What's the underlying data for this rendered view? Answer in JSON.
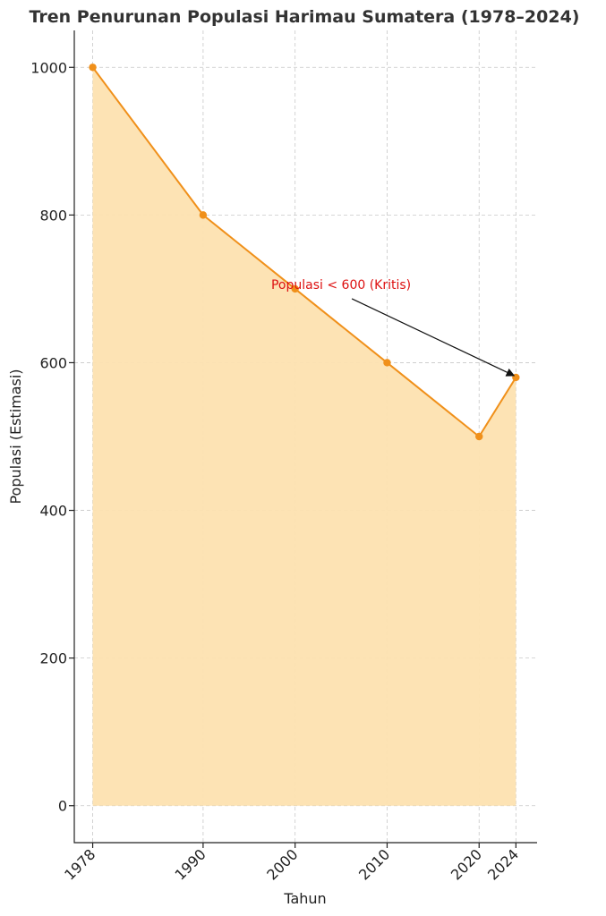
{
  "chart_data": {
    "type": "area",
    "title": "Tren Penurunan Populasi Harimau Sumatera (1978–2024)",
    "xlabel": "Tahun",
    "ylabel": "Populasi (Estimasi)",
    "x": [
      1978,
      1990,
      2000,
      2010,
      2020,
      2024
    ],
    "x_tick_labels": [
      "1978",
      "1990",
      "2000",
      "2010",
      "2020",
      "2024"
    ],
    "series": [
      {
        "values": [
          1000,
          800,
          700,
          600,
          500,
          580
        ]
      }
    ],
    "xlim": [
      1976,
      2026.3
    ],
    "ylim": [
      -50,
      1050
    ],
    "y_ticks": [
      0,
      200,
      400,
      600,
      800,
      1000
    ],
    "y_tick_labels": [
      "0",
      "200",
      "400",
      "600",
      "800",
      "1000"
    ],
    "grid": true,
    "colors": {
      "line": "#f0901a",
      "fill": "#fde2b0",
      "annotation": "#dd1111",
      "arrow": "#111111"
    },
    "annotation": {
      "text": "Populasi < 600 (Kritis)",
      "text_x": 2005,
      "text_y": 700,
      "target_x": 2024,
      "target_y": 580
    }
  }
}
